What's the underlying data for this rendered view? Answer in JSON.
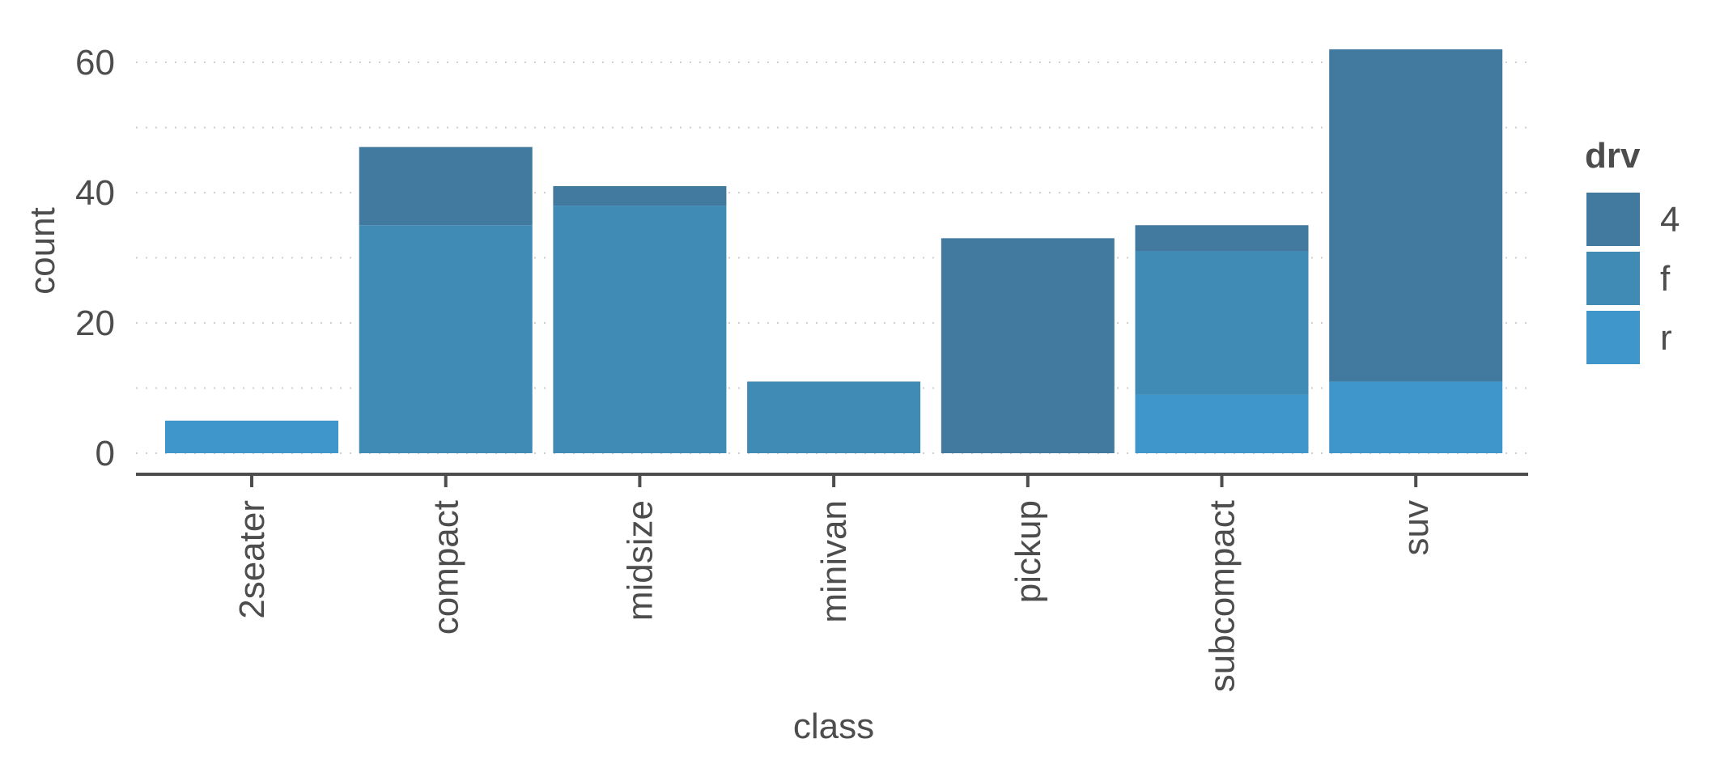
{
  "chart_data": {
    "type": "bar",
    "stacked": true,
    "title": "",
    "xlabel": "class",
    "ylabel": "count",
    "categories": [
      "2seater",
      "compact",
      "midsize",
      "minivan",
      "pickup",
      "subcompact",
      "suv"
    ],
    "series": [
      {
        "name": "4",
        "color": "#41799f",
        "values": [
          0,
          12,
          3,
          0,
          33,
          4,
          51
        ]
      },
      {
        "name": "f",
        "color": "#408ab6",
        "values": [
          0,
          35,
          38,
          11,
          0,
          22,
          0
        ]
      },
      {
        "name": "r",
        "color": "#3e96cb",
        "values": [
          5,
          0,
          0,
          0,
          0,
          9,
          11
        ]
      }
    ],
    "stack_order_bottom_to_top": [
      "r",
      "f",
      "4"
    ],
    "ylim": [
      0,
      62
    ],
    "y_ticks": [
      0,
      20,
      40,
      60
    ],
    "y_minor_ticks": [
      10,
      30,
      50
    ],
    "grid": true,
    "legend": {
      "title": "drv",
      "position": "right",
      "entries": [
        "4",
        "f",
        "r"
      ]
    }
  }
}
